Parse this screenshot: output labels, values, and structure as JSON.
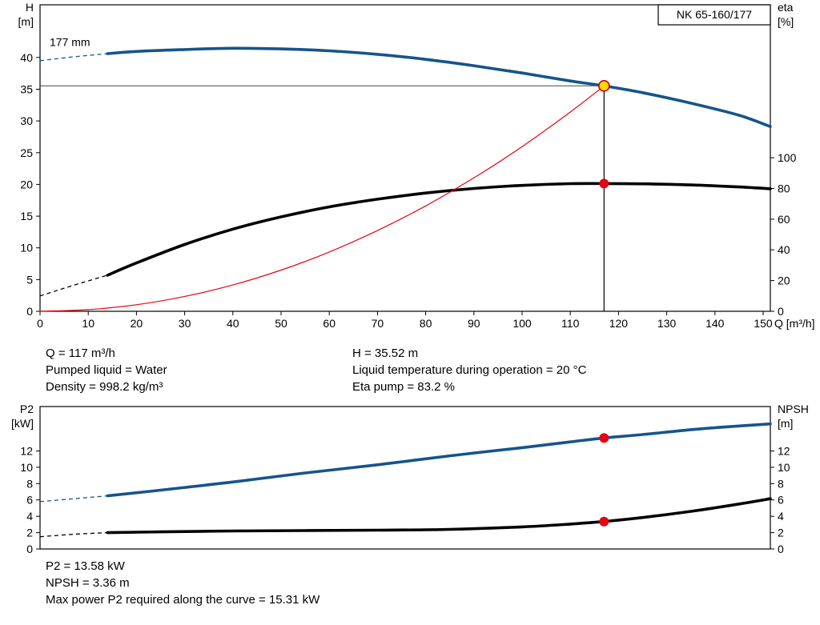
{
  "page": {
    "background": "#ffffff"
  },
  "results": {
    "left": [
      "Q = 117 m³/h",
      "Pumped liquid = Water",
      "Density = 998.2 kg/m³"
    ],
    "right": [
      "H = 35.52 m",
      "Liquid temperature during operation = 20 °C",
      "Eta pump = 83.2 %"
    ],
    "bottom": [
      "P2 = 13.58 kW",
      "NPSH = 3.36 m",
      "Max power P2 required along the curve = 15.31 kW"
    ]
  },
  "chart_data": [
    {
      "id": "head-efficiency",
      "type": "line",
      "title": "NK 65-160/177",
      "x_axis": {
        "label": "Q [m³/h]",
        "min": 0,
        "max": 151.5,
        "ticks": [
          0,
          10,
          20,
          30,
          40,
          50,
          60,
          70,
          80,
          90,
          100,
          110,
          120,
          130,
          140,
          150
        ]
      },
      "y_left": {
        "label_lines": [
          "H",
          "[m]"
        ],
        "min": 0,
        "max": 48.3,
        "ticks": [
          0,
          5,
          10,
          15,
          20,
          25,
          30,
          35,
          40
        ]
      },
      "y_right": {
        "label_lines": [
          "eta",
          "[%]"
        ],
        "min": 0,
        "max": 199.6,
        "ticks": [
          0,
          20,
          40,
          60,
          80,
          100
        ]
      },
      "series": [
        {
          "name": "head-curve",
          "label": "177 mm",
          "label_at": [
            2,
            41.8
          ],
          "axis": "left",
          "color": "#15548b",
          "width": 3.6,
          "dash": [
            [
              0,
              39.5
            ],
            [
              7,
              40.1
            ],
            [
              14,
              40.6
            ]
          ],
          "points": [
            [
              14,
              40.6
            ],
            [
              20,
              40.95
            ],
            [
              30,
              41.25
            ],
            [
              40,
              41.45
            ],
            [
              50,
              41.35
            ],
            [
              60,
              41.05
            ],
            [
              70,
              40.5
            ],
            [
              80,
              39.7
            ],
            [
              90,
              38.7
            ],
            [
              100,
              37.55
            ],
            [
              110,
              36.3
            ],
            [
              117,
              35.52
            ],
            [
              125,
              34.45
            ],
            [
              135,
              32.8
            ],
            [
              145,
              30.9
            ],
            [
              151.5,
              29.1
            ]
          ]
        },
        {
          "name": "efficiency-curve",
          "axis": "right",
          "color": "#000000",
          "width": 3.6,
          "dash": [
            [
              0,
              10
            ],
            [
              7,
              17
            ],
            [
              14,
              23.5
            ]
          ],
          "points": [
            [
              14,
              23.5
            ],
            [
              20,
              31.5
            ],
            [
              30,
              43.5
            ],
            [
              40,
              53.5
            ],
            [
              50,
              61.5
            ],
            [
              60,
              68
            ],
            [
              70,
              73
            ],
            [
              80,
              77
            ],
            [
              90,
              80
            ],
            [
              100,
              82
            ],
            [
              110,
              83.1
            ],
            [
              117,
              83.2
            ],
            [
              125,
              83
            ],
            [
              135,
              82.3
            ],
            [
              145,
              81
            ],
            [
              151.5,
              79.8
            ]
          ]
        },
        {
          "name": "system-curve",
          "axis": "left",
          "color": "#e30613",
          "width": 1.2,
          "points": [
            [
              0,
              0
            ],
            [
              10,
              0.26
            ],
            [
              20,
              1.04
            ],
            [
              30,
              2.34
            ],
            [
              40,
              4.15
            ],
            [
              50,
              6.49
            ],
            [
              60,
              9.34
            ],
            [
              70,
              12.72
            ],
            [
              80,
              16.61
            ],
            [
              90,
              21.02
            ],
            [
              100,
              25.95
            ],
            [
              110,
              31.4
            ],
            [
              117,
              35.52
            ]
          ]
        }
      ],
      "duty_point": {
        "q": 117,
        "h": 35.52,
        "eta_pct": 83.2
      },
      "guides": {
        "vline_q": 117,
        "hline_h": 35.52
      },
      "markers": [
        {
          "name": "duty-point-marker",
          "axis": "left",
          "x": 117,
          "y": 35.52,
          "r": 6.5,
          "fill": "#ffd800",
          "stroke": "#c00000",
          "stroke_width": 1.6
        },
        {
          "name": "efficiency-point-marker",
          "axis": "right",
          "x": 117,
          "y": 83.2,
          "r": 5.5,
          "fill": "#e30613",
          "stroke": "#e30613",
          "stroke_width": 1
        }
      ]
    },
    {
      "id": "p2-npsh",
      "type": "line",
      "x_axis": {
        "label": "",
        "min": 0,
        "max": 151.5,
        "ticks": []
      },
      "y_left": {
        "label_lines": [
          "P2",
          "[kW]"
        ],
        "min": 0,
        "max": 17.43,
        "ticks": [
          0,
          2,
          4,
          6,
          8,
          10,
          12
        ]
      },
      "y_right": {
        "label_lines": [
          "NPSH",
          "[m]"
        ],
        "min": 0,
        "max": 17.43,
        "ticks": [
          0,
          2,
          4,
          6,
          8,
          10,
          12
        ]
      },
      "series": [
        {
          "name": "p2-curve",
          "axis": "left",
          "color": "#15548b",
          "width": 3.6,
          "dash": [
            [
              0,
              5.8
            ],
            [
              7,
              6.15
            ],
            [
              14,
              6.5
            ]
          ],
          "points": [
            [
              14,
              6.5
            ],
            [
              25,
              7.2
            ],
            [
              40,
              8.2
            ],
            [
              55,
              9.3
            ],
            [
              70,
              10.3
            ],
            [
              85,
              11.4
            ],
            [
              100,
              12.4
            ],
            [
              110,
              13.1
            ],
            [
              117,
              13.58
            ],
            [
              125,
              14.0
            ],
            [
              135,
              14.6
            ],
            [
              145,
              15.05
            ],
            [
              151.5,
              15.31
            ]
          ]
        },
        {
          "name": "npsh-curve",
          "axis": "right",
          "color": "#000000",
          "width": 3.6,
          "dash": [
            [
              0,
              1.5
            ],
            [
              7,
              1.8
            ],
            [
              14,
              2.0
            ]
          ],
          "points": [
            [
              14,
              2.0
            ],
            [
              25,
              2.1
            ],
            [
              40,
              2.2
            ],
            [
              55,
              2.25
            ],
            [
              70,
              2.3
            ],
            [
              85,
              2.4
            ],
            [
              100,
              2.7
            ],
            [
              110,
              3.05
            ],
            [
              117,
              3.36
            ],
            [
              125,
              3.85
            ],
            [
              135,
              4.6
            ],
            [
              145,
              5.5
            ],
            [
              151.5,
              6.15
            ]
          ]
        }
      ],
      "markers": [
        {
          "name": "p2-point-marker",
          "axis": "left",
          "x": 117,
          "y": 13.58,
          "r": 5.5,
          "fill": "#e30613",
          "stroke": "#e30613",
          "stroke_width": 1
        },
        {
          "name": "npsh-point-marker",
          "axis": "right",
          "x": 117,
          "y": 3.36,
          "r": 5.5,
          "fill": "#e30613",
          "stroke": "#e30613",
          "stroke_width": 1
        }
      ]
    }
  ]
}
